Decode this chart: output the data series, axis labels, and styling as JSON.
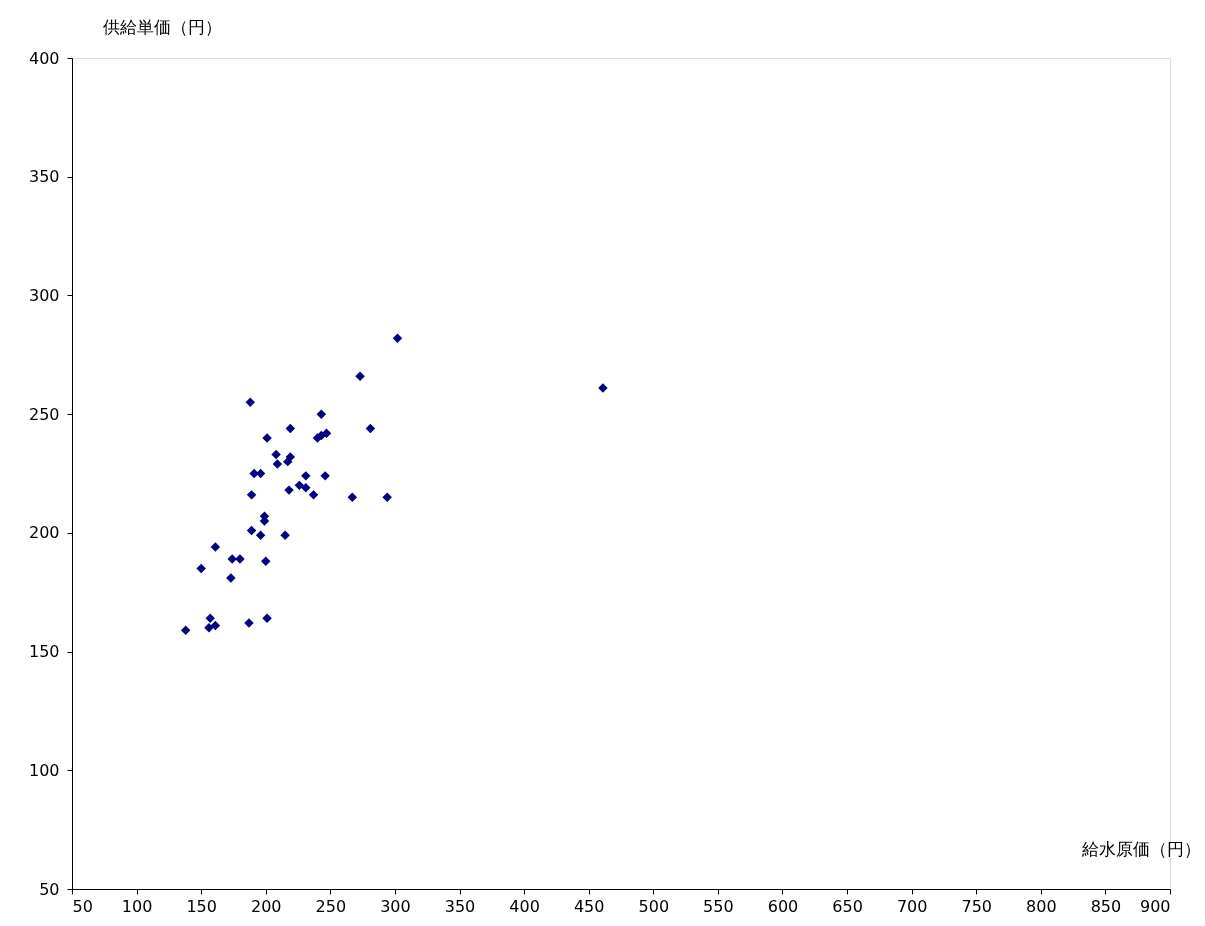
{
  "chart_data": {
    "type": "scatter",
    "xlabel": "給水原価（円）",
    "ylabel": "供給単価（円）",
    "x": [
      138,
      150,
      156,
      157,
      161,
      161,
      173,
      174,
      180,
      187,
      188,
      189,
      189,
      191,
      196,
      196,
      199,
      199,
      200,
      201,
      201,
      208,
      209,
      215,
      217,
      218,
      219,
      219,
      226,
      231,
      231,
      237,
      240,
      243,
      243,
      246,
      247,
      267,
      273,
      281,
      294,
      302,
      461
    ],
    "series": [
      {
        "color": "#000080",
        "values": [
          159,
          185,
          160,
          164,
          161,
          194,
          181,
          189,
          189,
          162,
          255,
          201,
          216,
          225,
          225,
          199,
          207,
          205,
          188,
          164,
          240,
          233,
          229,
          199,
          230,
          218,
          244,
          232,
          220,
          219,
          224,
          216,
          240,
          250,
          241,
          224,
          242,
          215,
          266,
          244,
          215,
          282,
          261
        ]
      }
    ],
    "xlim": [
      50,
      900
    ],
    "xticks": [
      50,
      100,
      150,
      200,
      250,
      300,
      350,
      400,
      450,
      500,
      550,
      600,
      650,
      700,
      750,
      800,
      850,
      900
    ],
    "ylim": [
      50,
      400
    ],
    "yticks": [
      50,
      100,
      150,
      200,
      250,
      300,
      350,
      400
    ],
    "marker": "diamond",
    "grid": false,
    "legend": false
  }
}
